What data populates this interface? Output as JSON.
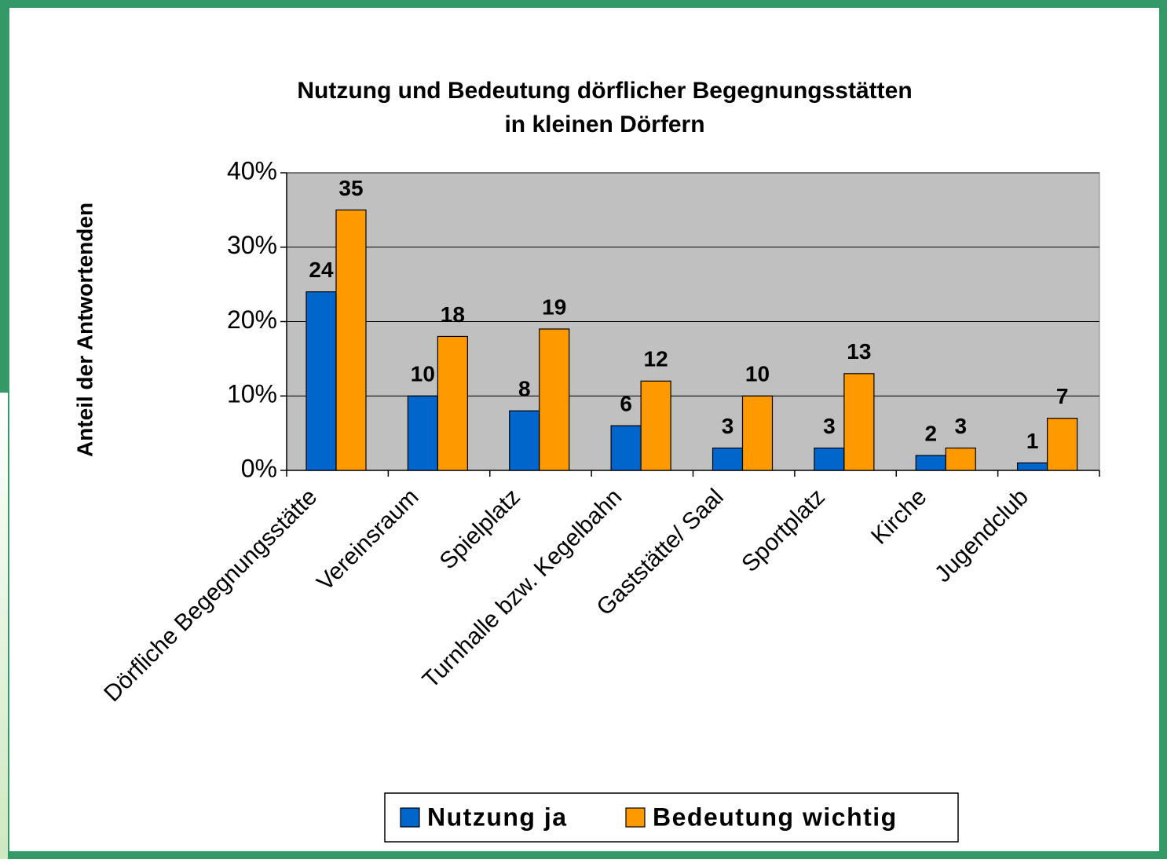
{
  "chart_data": {
    "type": "bar",
    "title": [
      "Nutzung und Bedeutung dörflicher Begegnungsstätten",
      "in kleinen Dörfern"
    ],
    "y_label": "Anteil der Antwortenden",
    "categories": [
      "Dörfliche Begegnungsstätte",
      "Vereinsraum",
      "Spielplatz",
      "Turnhalle bzw. Kegelbahn",
      "Gaststätte/ Saal",
      "Sportplatz",
      "Kirche",
      "Jugendclub"
    ],
    "series": [
      {
        "name": "Nutzung ja",
        "color": "#0066cc",
        "values": [
          24,
          10,
          8,
          6,
          3,
          3,
          2,
          1
        ]
      },
      {
        "name": "Bedeutung wichtig",
        "color": "#ff9900",
        "values": [
          35,
          18,
          19,
          12,
          10,
          13,
          3,
          7
        ]
      }
    ],
    "ylim": [
      0,
      40
    ],
    "yticks": [
      {
        "value": 0,
        "label": "0%"
      },
      {
        "value": 10,
        "label": "10%"
      },
      {
        "value": 20,
        "label": "20%"
      },
      {
        "value": 30,
        "label": "30%"
      },
      {
        "value": 40,
        "label": "40%"
      }
    ],
    "grid": true,
    "legend": "bottom",
    "plot_background": "#c0c0c0"
  }
}
